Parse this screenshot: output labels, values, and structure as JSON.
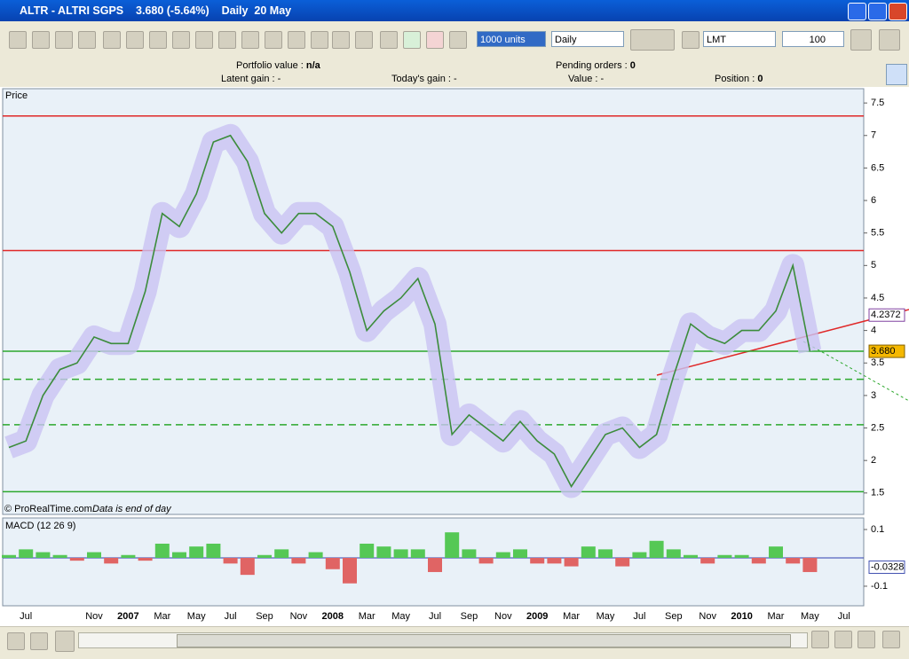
{
  "window": {
    "title": "ALTR - ALTRI SGPS    3.680 (-5.64%)    Daily  20 May"
  },
  "toolbar": {
    "units": "1000 units",
    "period": "Daily",
    "order_type": "LMT",
    "quantity": "100"
  },
  "status": {
    "portfolio_label": "Portfolio value : ",
    "portfolio_value": "n/a",
    "latent_label": "Latent gain : ",
    "latent_value": "-",
    "today_label": "Today's gain : ",
    "today_value": "-",
    "pending_label": "Pending orders : ",
    "pending_value": "0",
    "value_label": "Value : ",
    "value_value": "-",
    "position_label": "Position : ",
    "position_value": "0"
  },
  "chart_data": [
    {
      "type": "line",
      "title": "Price",
      "color": "#3c8c3c",
      "band_color": "#c9c3f2",
      "values": [
        2.2,
        2.3,
        3.0,
        3.4,
        3.5,
        3.9,
        3.8,
        3.8,
        4.6,
        5.8,
        5.6,
        6.1,
        6.9,
        7.0,
        6.6,
        5.8,
        5.5,
        5.8,
        5.8,
        5.6,
        4.9,
        4.0,
        4.3,
        4.5,
        4.8,
        4.1,
        2.4,
        2.7,
        2.5,
        2.3,
        2.6,
        2.3,
        2.1,
        1.6,
        2.0,
        2.4,
        2.5,
        2.2,
        2.4,
        3.3,
        4.1,
        3.9,
        3.8,
        4.0,
        4.0,
        4.3,
        5.0,
        3.68,
        null,
        null
      ],
      "ylim": [
        1.17,
        7.72
      ],
      "yticks": [
        1.5,
        2,
        2.5,
        3,
        3.5,
        4,
        4.5,
        5,
        5.5,
        6,
        6.5,
        7,
        7.5
      ],
      "reference_lines": [
        {
          "value": 7.3,
          "color": "#e02828",
          "dashed": false
        },
        {
          "value": 5.23,
          "color": "#e02828",
          "dashed": false
        },
        {
          "value": 3.68,
          "color": "#2ca82c",
          "dashed": false
        },
        {
          "value": 3.25,
          "color": "#2ca82c",
          "dashed": true
        },
        {
          "value": 2.55,
          "color": "#2ca82c",
          "dashed": true
        },
        {
          "value": 1.52,
          "color": "#2ca82c",
          "dashed": false
        }
      ],
      "markers": [
        {
          "value": 4.2372,
          "label": "4.2372",
          "color": "#ffffff",
          "border": "#8040a0"
        },
        {
          "value": 3.68,
          "label": "3.680",
          "color": "#f5b800",
          "border": "#806000"
        }
      ],
      "annotation": "© ProRealTime.com",
      "note": "Data is end of day"
    },
    {
      "type": "bar",
      "title": "MACD (12 26 9)",
      "positive_color": "#55c855",
      "negative_color": "#e06464",
      "categories": [
        null,
        "Jul",
        null,
        null,
        null,
        "Nov",
        null,
        "2007",
        null,
        "Mar",
        null,
        "May",
        null,
        "Jul",
        null,
        "Sep",
        null,
        "Nov",
        null,
        "2008",
        null,
        "Mar",
        null,
        "May",
        null,
        "Jul",
        null,
        "Sep",
        null,
        "Nov",
        null,
        "2009",
        null,
        "Mar",
        null,
        "May",
        null,
        "Jul",
        null,
        "Sep",
        null,
        "Nov",
        null,
        "2010",
        null,
        "Mar",
        null,
        "May",
        null,
        "Jul"
      ],
      "values": [
        0.01,
        0.03,
        0.02,
        0.01,
        -0.01,
        0.02,
        -0.02,
        0.01,
        -0.01,
        0.05,
        0.02,
        0.04,
        0.05,
        -0.02,
        -0.06,
        0.01,
        0.03,
        -0.02,
        0.02,
        -0.04,
        -0.09,
        0.05,
        0.04,
        0.03,
        0.03,
        -0.05,
        0.09,
        0.03,
        -0.02,
        0.02,
        0.03,
        -0.02,
        -0.02,
        -0.03,
        0.04,
        0.03,
        -0.03,
        0.02,
        0.06,
        0.03,
        0.01,
        -0.02,
        0.01,
        0.01,
        -0.02,
        0.04,
        -0.02,
        -0.05,
        null,
        null
      ],
      "ylim": [
        -0.169,
        0.1375
      ],
      "yticks": [
        0.1,
        -0.1
      ],
      "markers": [
        {
          "value": -0.0328,
          "label": "-0.0328",
          "color": "#ffffff",
          "border": "#4050b0"
        }
      ]
    }
  ]
}
